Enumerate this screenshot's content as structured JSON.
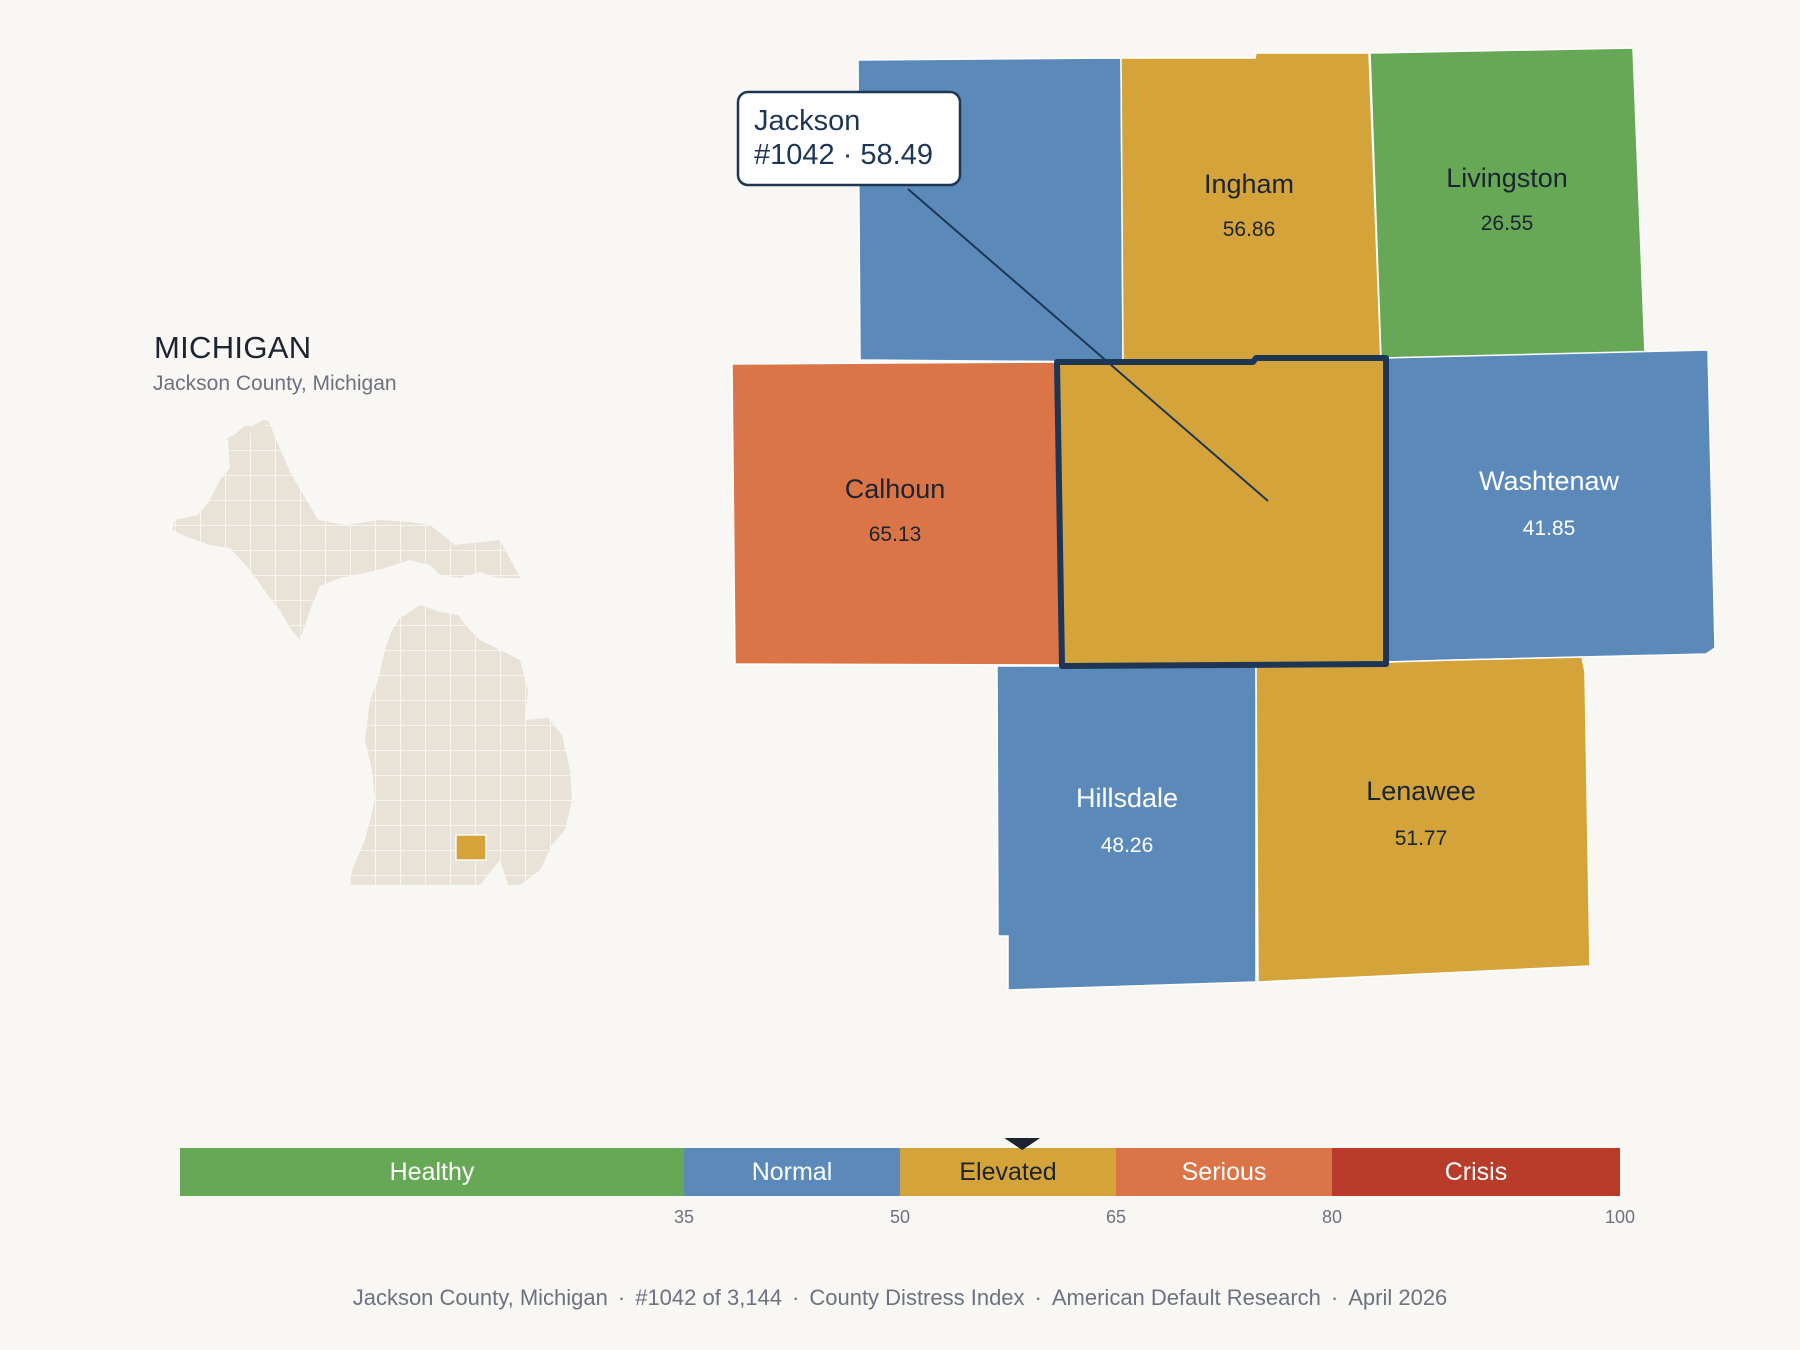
{
  "header": {
    "state_title": "MICHIGAN",
    "subtitle": "Jackson County, Michigan"
  },
  "callout": {
    "name": "Jackson",
    "detail": "#1042 · 58.49"
  },
  "counties": [
    {
      "id": "jackson",
      "name": "",
      "value": "",
      "color": "#d4a43a",
      "focus": true
    },
    {
      "id": "eaton",
      "name": "",
      "value": "",
      "color": "#5b8aba"
    },
    {
      "id": "ingham",
      "name": "Ingham",
      "value": "56.86",
      "color": "#d4a43a"
    },
    {
      "id": "livingston",
      "name": "Livingston",
      "value": "26.55",
      "color": "#67a857"
    },
    {
      "id": "calhoun",
      "name": "Calhoun",
      "value": "65.13",
      "color": "#db7548"
    },
    {
      "id": "washtenaw",
      "name": "Washtenaw",
      "value": "41.85",
      "color": "#5b8aba"
    },
    {
      "id": "hillsdale",
      "name": "Hillsdale",
      "value": "48.26",
      "color": "#5b8aba"
    },
    {
      "id": "lenawee",
      "name": "Lenawee",
      "value": "51.77",
      "color": "#d4a43a"
    }
  ],
  "inset": {
    "land_color": "#e8e2d7",
    "highlight_color": "#d4a43a"
  },
  "legend": {
    "marker_value": 58.49,
    "bins": [
      {
        "label": "Healthy",
        "min": 0,
        "max": 35,
        "color": "#67a857",
        "text_color": "#ffffff"
      },
      {
        "label": "Normal",
        "min": 35,
        "max": 50,
        "color": "#5b8aba",
        "text_color": "#ffffff"
      },
      {
        "label": "Elevated",
        "min": 50,
        "max": 65,
        "color": "#d4a43a",
        "text_color": "#1b2430"
      },
      {
        "label": "Serious",
        "min": 65,
        "max": 80,
        "color": "#db7548",
        "text_color": "#ffffff"
      },
      {
        "label": "Crisis",
        "min": 80,
        "max": 100,
        "color": "#b93c2b",
        "text_color": "#ffffff"
      }
    ],
    "ticks": [
      "35",
      "50",
      "65",
      "80",
      "100"
    ]
  },
  "footer": {
    "county": "Jackson County, Michigan",
    "rank": "#1042 of 3,144",
    "index": "County Distress Index",
    "source": "American Default Research",
    "date": "April 2026"
  }
}
